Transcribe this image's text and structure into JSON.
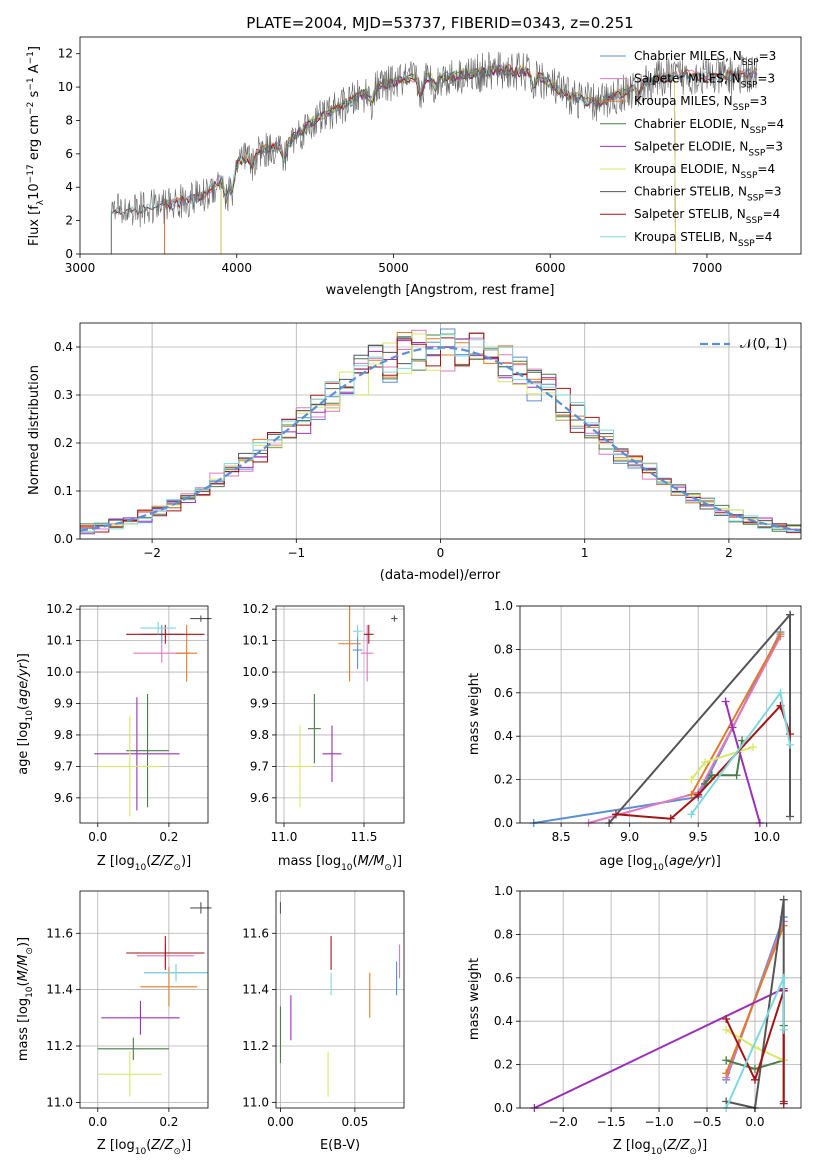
{
  "title": "PLATE=2004, MJD=53737, FIBERID=0343, z=0.251",
  "colors": {
    "chabrier_miles": "#5b8fd6",
    "salpeter_miles": "#e377c2",
    "kroupa_miles": "#e07b28",
    "chabrier_elodie": "#4a7d4a",
    "salpeter_elodie": "#9b30b8",
    "kroupa_elodie": "#d8e86a",
    "chabrier_stelib": "#555555",
    "salpeter_stelib": "#a31515",
    "kroupa_stelib": "#7fd8de",
    "normal_curve": "#5b8fd6"
  },
  "legend": [
    {
      "label": "Chabrier MILES, N",
      "sub": "SSP",
      "tail": "=3",
      "color_key": "chabrier_miles"
    },
    {
      "label": "Salpeter MILES, N",
      "sub": "SSP",
      "tail": "=3",
      "color_key": "salpeter_miles"
    },
    {
      "label": "Kroupa MILES, N",
      "sub": "SSP",
      "tail": "=3",
      "color_key": "kroupa_miles"
    },
    {
      "label": "Chabrier ELODIE, N",
      "sub": "SSP",
      "tail": "=4",
      "color_key": "chabrier_elodie"
    },
    {
      "label": "Salpeter ELODIE, N",
      "sub": "SSP",
      "tail": "=3",
      "color_key": "salpeter_elodie"
    },
    {
      "label": "Kroupa ELODIE, N",
      "sub": "SSP",
      "tail": "=4",
      "color_key": "kroupa_elodie"
    },
    {
      "label": "Chabrier STELIB, N",
      "sub": "SSP",
      "tail": "=3",
      "color_key": "chabrier_stelib"
    },
    {
      "label": "Salpeter STELIB, N",
      "sub": "SSP",
      "tail": "=4",
      "color_key": "salpeter_stelib"
    },
    {
      "label": "Kroupa STELIB, N",
      "sub": "SSP",
      "tail": "=4",
      "color_key": "kroupa_stelib"
    }
  ],
  "chart_data": [
    {
      "id": "spectrum",
      "type": "line",
      "xlabel": "wavelength [Angstrom, rest frame]",
      "ylabel": "Flux [f_λ 10^-17 erg cm^-2 s^-1 A^-1]",
      "xlim": [
        3000,
        7600
      ],
      "ylim": [
        0,
        13
      ],
      "xticks": [
        3000,
        4000,
        5000,
        6000,
        7000
      ],
      "yticks": [
        0,
        2,
        4,
        6,
        8,
        10,
        12
      ],
      "legend_position": "upper-right",
      "data_trend": {
        "wavelength": [
          3200,
          3400,
          3600,
          3800,
          3950,
          4100,
          4300,
          4500,
          4700,
          4900,
          5100,
          5300,
          5500,
          5700,
          5900,
          6100,
          6300,
          6500,
          6700,
          6900,
          7100,
          7300
        ],
        "flux": [
          2.5,
          2.7,
          3.0,
          3.5,
          5.0,
          6.0,
          6.5,
          8.0,
          9.0,
          10.0,
          10.5,
          10.5,
          10.8,
          11.0,
          10.8,
          9.5,
          9.0,
          9.8,
          10.5,
          10.7,
          10.6,
          10.8
        ]
      }
    },
    {
      "id": "residual_histogram",
      "type": "bar",
      "xlabel": "(data-model)/error",
      "ylabel": "Normed distribution",
      "xlim": [
        -2.5,
        2.5
      ],
      "ylim": [
        0,
        0.45
      ],
      "xticks": [
        -2,
        -1,
        0,
        1,
        2
      ],
      "yticks": [
        0.0,
        0.1,
        0.2,
        0.3,
        0.4
      ],
      "grid": true,
      "legend": "𝒩(0, 1)",
      "legend_position": "upper-right",
      "bin_width": 0.1,
      "bin_start": -2.5,
      "reference_curve": "normal(0,1)"
    },
    {
      "id": "age_vs_Z",
      "type": "scatter",
      "xlabel": "Z [log10(Z/Z⊙)]",
      "ylabel": "age [log10(age/yr)]",
      "xlim": [
        -0.05,
        0.31
      ],
      "ylim": [
        9.52,
        10.21
      ],
      "xticks": [
        0.0,
        0.2
      ],
      "yticks": [
        9.6,
        9.7,
        9.8,
        9.9,
        10.0,
        10.1,
        10.2
      ],
      "grid": true,
      "points": [
        {
          "series": "chabrier_miles",
          "x": 0.18,
          "xerr": 0.06,
          "y": 10.12,
          "yerr": 0.03
        },
        {
          "series": "salpeter_miles",
          "x": 0.18,
          "xerr": 0.08,
          "y": 10.06,
          "yerr": 0.03
        },
        {
          "series": "kroupa_miles",
          "x": 0.25,
          "xerr": 0.03,
          "y": 10.06,
          "yerr": 0.09
        },
        {
          "series": "chabrier_elodie",
          "x": 0.14,
          "xerr": 0.06,
          "y": 9.75,
          "yerr": 0.18
        },
        {
          "series": "salpeter_elodie",
          "x": 0.11,
          "xerr": 0.12,
          "y": 9.74,
          "yerr": 0.18
        },
        {
          "series": "kroupa_elodie",
          "x": 0.09,
          "xerr": 0.09,
          "y": 9.7,
          "yerr": 0.16
        },
        {
          "series": "chabrier_stelib",
          "x": 0.29,
          "xerr": 0.03,
          "y": 10.17,
          "yerr": 0.01
        },
        {
          "series": "salpeter_stelib",
          "x": 0.19,
          "xerr": 0.11,
          "y": 10.12,
          "yerr": 0.03
        },
        {
          "series": "kroupa_stelib",
          "x": 0.17,
          "xerr": 0.05,
          "y": 10.14,
          "yerr": 0.02
        }
      ]
    },
    {
      "id": "age_vs_mass",
      "type": "scatter",
      "xlabel": "mass [log10(M/M⊙)]",
      "ylabel": "",
      "xlim": [
        10.95,
        11.75
      ],
      "ylim": [
        9.52,
        10.21
      ],
      "xticks": [
        11.0,
        11.5
      ],
      "yticks": [
        9.6,
        9.7,
        9.8,
        9.9,
        10.0,
        10.1,
        10.2
      ],
      "grid": true,
      "points": [
        {
          "series": "chabrier_miles",
          "x": 11.46,
          "xerr": 0.03,
          "y": 10.07,
          "yerr": 0.06
        },
        {
          "series": "salpeter_miles",
          "x": 11.52,
          "xerr": 0.04,
          "y": 10.06,
          "yerr": 0.09
        },
        {
          "series": "kroupa_miles",
          "x": 11.41,
          "xerr": 0.07,
          "y": 10.09,
          "yerr": 0.12
        },
        {
          "series": "chabrier_elodie",
          "x": 11.19,
          "xerr": 0.04,
          "y": 9.82,
          "yerr": 0.11
        },
        {
          "series": "salpeter_elodie",
          "x": 11.3,
          "xerr": 0.06,
          "y": 9.74,
          "yerr": 0.09
        },
        {
          "series": "kroupa_elodie",
          "x": 11.1,
          "xerr": 0.08,
          "y": 9.7,
          "yerr": 0.13
        },
        {
          "series": "chabrier_stelib",
          "x": 11.69,
          "xerr": 0.02,
          "y": 10.17,
          "yerr": 0.01
        },
        {
          "series": "salpeter_stelib",
          "x": 11.53,
          "xerr": 0.03,
          "y": 10.12,
          "yerr": 0.03
        },
        {
          "series": "kroupa_stelib",
          "x": 11.46,
          "xerr": 0.03,
          "y": 10.13,
          "yerr": 0.02
        }
      ]
    },
    {
      "id": "mass_weight_vs_age",
      "type": "line",
      "xlabel": "age [log10(age/yr)]",
      "ylabel": "mass weight",
      "xlim": [
        8.2,
        10.25
      ],
      "ylim": [
        0,
        1.0
      ],
      "xticks": [
        8.5,
        9.0,
        9.5,
        10.0
      ],
      "yticks": [
        0.0,
        0.2,
        0.4,
        0.6,
        0.8,
        1.0
      ],
      "grid": true,
      "series": [
        {
          "name": "chabrier_miles",
          "x": [
            8.3,
            9.5,
            10.1
          ],
          "y": [
            0.0,
            0.12,
            0.88
          ]
        },
        {
          "name": "salpeter_miles",
          "x": [
            8.7,
            9.5,
            10.1
          ],
          "y": [
            0.0,
            0.14,
            0.86
          ]
        },
        {
          "name": "kroupa_miles",
          "x": [
            9.45,
            10.1
          ],
          "y": [
            0.13,
            0.87
          ]
        },
        {
          "name": "chabrier_elodie",
          "x": [
            9.55,
            9.6,
            9.78,
            9.82
          ],
          "y": [
            0.18,
            0.22,
            0.22,
            0.38
          ]
        },
        {
          "name": "salpeter_elodie",
          "x": [
            9.7,
            9.75,
            9.95
          ],
          "y": [
            0.56,
            0.44,
            0.0
          ]
        },
        {
          "name": "kroupa_elodie",
          "x": [
            9.45,
            9.55,
            9.9
          ],
          "y": [
            0.2,
            0.28,
            0.35
          ]
        },
        {
          "name": "chabrier_stelib",
          "x": [
            8.85,
            10.17,
            10.17
          ],
          "y": [
            0.0,
            0.96,
            0.03
          ]
        },
        {
          "name": "salpeter_stelib",
          "x": [
            8.9,
            9.3,
            9.5,
            10.1,
            10.17
          ],
          "y": [
            0.04,
            0.02,
            0.13,
            0.54,
            0.41
          ]
        },
        {
          "name": "kroupa_stelib",
          "x": [
            9.45,
            10.1,
            10.17
          ],
          "y": [
            0.04,
            0.6,
            0.36
          ]
        }
      ]
    },
    {
      "id": "mass_vs_Z",
      "type": "scatter",
      "xlabel": "Z [log10(Z/Z⊙)]",
      "ylabel": "mass [log10(M/M⊙)]",
      "xlim": [
        -0.05,
        0.31
      ],
      "ylim": [
        10.98,
        11.75
      ],
      "xticks": [
        0.0,
        0.2
      ],
      "yticks": [
        11.0,
        11.2,
        11.4,
        11.6
      ],
      "grid": true,
      "points": [
        {
          "series": "chabrier_miles",
          "x": 0.22,
          "xerr": 0.09,
          "y": 11.46,
          "yerr": 0.03
        },
        {
          "series": "salpeter_miles",
          "x": 0.19,
          "xerr": 0.08,
          "y": 11.52,
          "yerr": 0.04
        },
        {
          "series": "kroupa_miles",
          "x": 0.2,
          "xerr": 0.08,
          "y": 11.41,
          "yerr": 0.07
        },
        {
          "series": "chabrier_elodie",
          "x": 0.1,
          "xerr": 0.1,
          "y": 11.19,
          "yerr": 0.04
        },
        {
          "series": "salpeter_elodie",
          "x": 0.12,
          "xerr": 0.11,
          "y": 11.3,
          "yerr": 0.06
        },
        {
          "series": "kroupa_elodie",
          "x": 0.09,
          "xerr": 0.09,
          "y": 11.1,
          "yerr": 0.08
        },
        {
          "series": "chabrier_stelib",
          "x": 0.29,
          "xerr": 0.03,
          "y": 11.69,
          "yerr": 0.02
        },
        {
          "series": "salpeter_stelib",
          "x": 0.19,
          "xerr": 0.11,
          "y": 11.53,
          "yerr": 0.06
        },
        {
          "series": "kroupa_stelib",
          "x": 0.22,
          "xerr": 0.09,
          "y": 11.46,
          "yerr": 0.03
        }
      ]
    },
    {
      "id": "mass_vs_ebv",
      "type": "scatter",
      "xlabel": "E(B-V)",
      "ylabel": "",
      "xlim": [
        -0.003,
        0.083
      ],
      "ylim": [
        10.98,
        11.75
      ],
      "xticks": [
        0.0,
        0.05
      ],
      "yticks": [
        11.0,
        11.2,
        11.4,
        11.6
      ],
      "grid": true,
      "points": [
        {
          "series": "chabrier_miles",
          "x": 0.078,
          "xerr": 0.0,
          "y": 11.44,
          "yerr": 0.06
        },
        {
          "series": "salpeter_miles",
          "x": 0.08,
          "xerr": 0.0,
          "y": 11.5,
          "yerr": 0.06
        },
        {
          "series": "kroupa_miles",
          "x": 0.06,
          "xerr": 0.0,
          "y": 11.38,
          "yerr": 0.08
        },
        {
          "series": "chabrier_elodie",
          "x": 0.0,
          "xerr": 0.0,
          "y": 11.24,
          "yerr": 0.1
        },
        {
          "series": "salpeter_elodie",
          "x": 0.007,
          "xerr": 0.0,
          "y": 11.3,
          "yerr": 0.08
        },
        {
          "series": "kroupa_elodie",
          "x": 0.032,
          "xerr": 0.0,
          "y": 11.1,
          "yerr": 0.08
        },
        {
          "series": "chabrier_stelib",
          "x": 0.0,
          "xerr": 0.0,
          "y": 11.69,
          "yerr": 0.02
        },
        {
          "series": "salpeter_stelib",
          "x": 0.034,
          "xerr": 0.0,
          "y": 11.53,
          "yerr": 0.06
        },
        {
          "series": "kroupa_stelib",
          "x": 0.034,
          "xerr": 0.0,
          "y": 11.42,
          "yerr": 0.04
        }
      ]
    },
    {
      "id": "mass_weight_vs_Z",
      "type": "line",
      "xlabel": "Z [log10(Z/Z⊙)]",
      "ylabel": "mass weight",
      "xlim": [
        -2.45,
        0.48
      ],
      "ylim": [
        0,
        1.0
      ],
      "xticks": [
        -2.0,
        -1.5,
        -1.0,
        -0.5,
        0.0
      ],
      "yticks": [
        0.0,
        0.2,
        0.4,
        0.6,
        0.8,
        1.0
      ],
      "grid": true,
      "series": [
        {
          "name": "chabrier_miles",
          "x": [
            -0.3,
            0.3
          ],
          "y": [
            0.13,
            0.88
          ]
        },
        {
          "name": "salpeter_miles",
          "x": [
            -0.3,
            0.3
          ],
          "y": [
            0.14,
            0.86
          ]
        },
        {
          "name": "kroupa_miles",
          "x": [
            -0.3,
            0.3
          ],
          "y": [
            0.16,
            0.84
          ]
        },
        {
          "name": "chabrier_elodie",
          "x": [
            -0.3,
            0.0,
            0.3,
            0.3
          ],
          "y": [
            0.22,
            0.18,
            0.22,
            0.38
          ]
        },
        {
          "name": "salpeter_elodie",
          "x": [
            -2.3,
            0.3
          ],
          "y": [
            0.0,
            0.55
          ]
        },
        {
          "name": "kroupa_elodie",
          "x": [
            -0.3,
            0.0,
            0.3
          ],
          "y": [
            0.36,
            0.28,
            0.22
          ]
        },
        {
          "name": "chabrier_stelib",
          "x": [
            -0.3,
            0.0,
            0.3,
            0.3
          ],
          "y": [
            0.03,
            0.0,
            0.96,
            0.03
          ]
        },
        {
          "name": "salpeter_stelib",
          "x": [
            -0.3,
            0.0,
            0.3,
            0.3
          ],
          "y": [
            0.41,
            0.13,
            0.54,
            0.02
          ]
        },
        {
          "name": "kroupa_stelib",
          "x": [
            -0.3,
            0.3,
            0.3
          ],
          "y": [
            0.0,
            0.6,
            0.36
          ]
        }
      ]
    }
  ]
}
